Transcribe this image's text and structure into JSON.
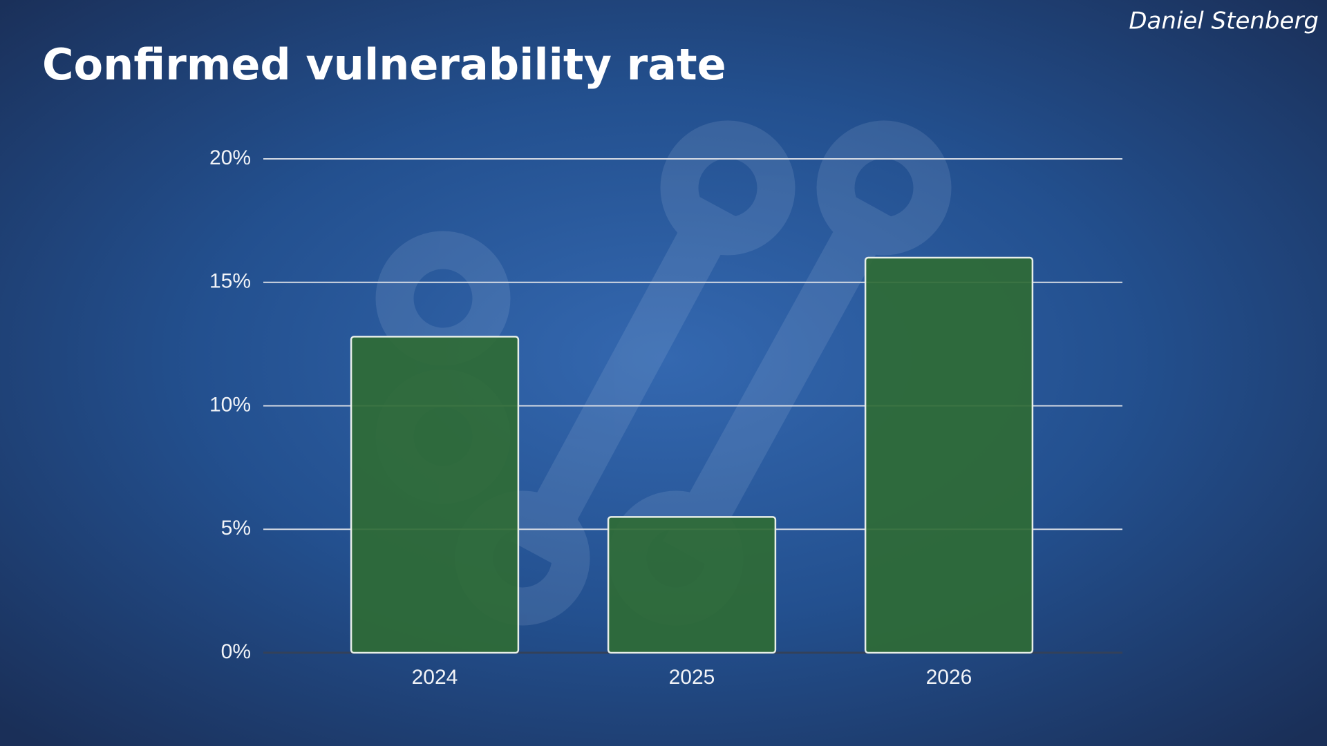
{
  "chart_data": {
    "type": "bar",
    "title": "Confirmed vulnerability rate",
    "author": "Daniel Stenberg",
    "categories": [
      "2024",
      "2025",
      "2026"
    ],
    "values": [
      12.8,
      5.5,
      16
    ],
    "color": "#2f6b35",
    "ylim": [
      0,
      20
    ],
    "yticks": [
      {
        "value": 0,
        "label": "0%"
      },
      {
        "value": 5,
        "label": "5%"
      },
      {
        "value": 10,
        "label": "10%"
      },
      {
        "value": 15,
        "label": "15%"
      },
      {
        "value": 20,
        "label": "20%"
      }
    ],
    "grid": true
  }
}
